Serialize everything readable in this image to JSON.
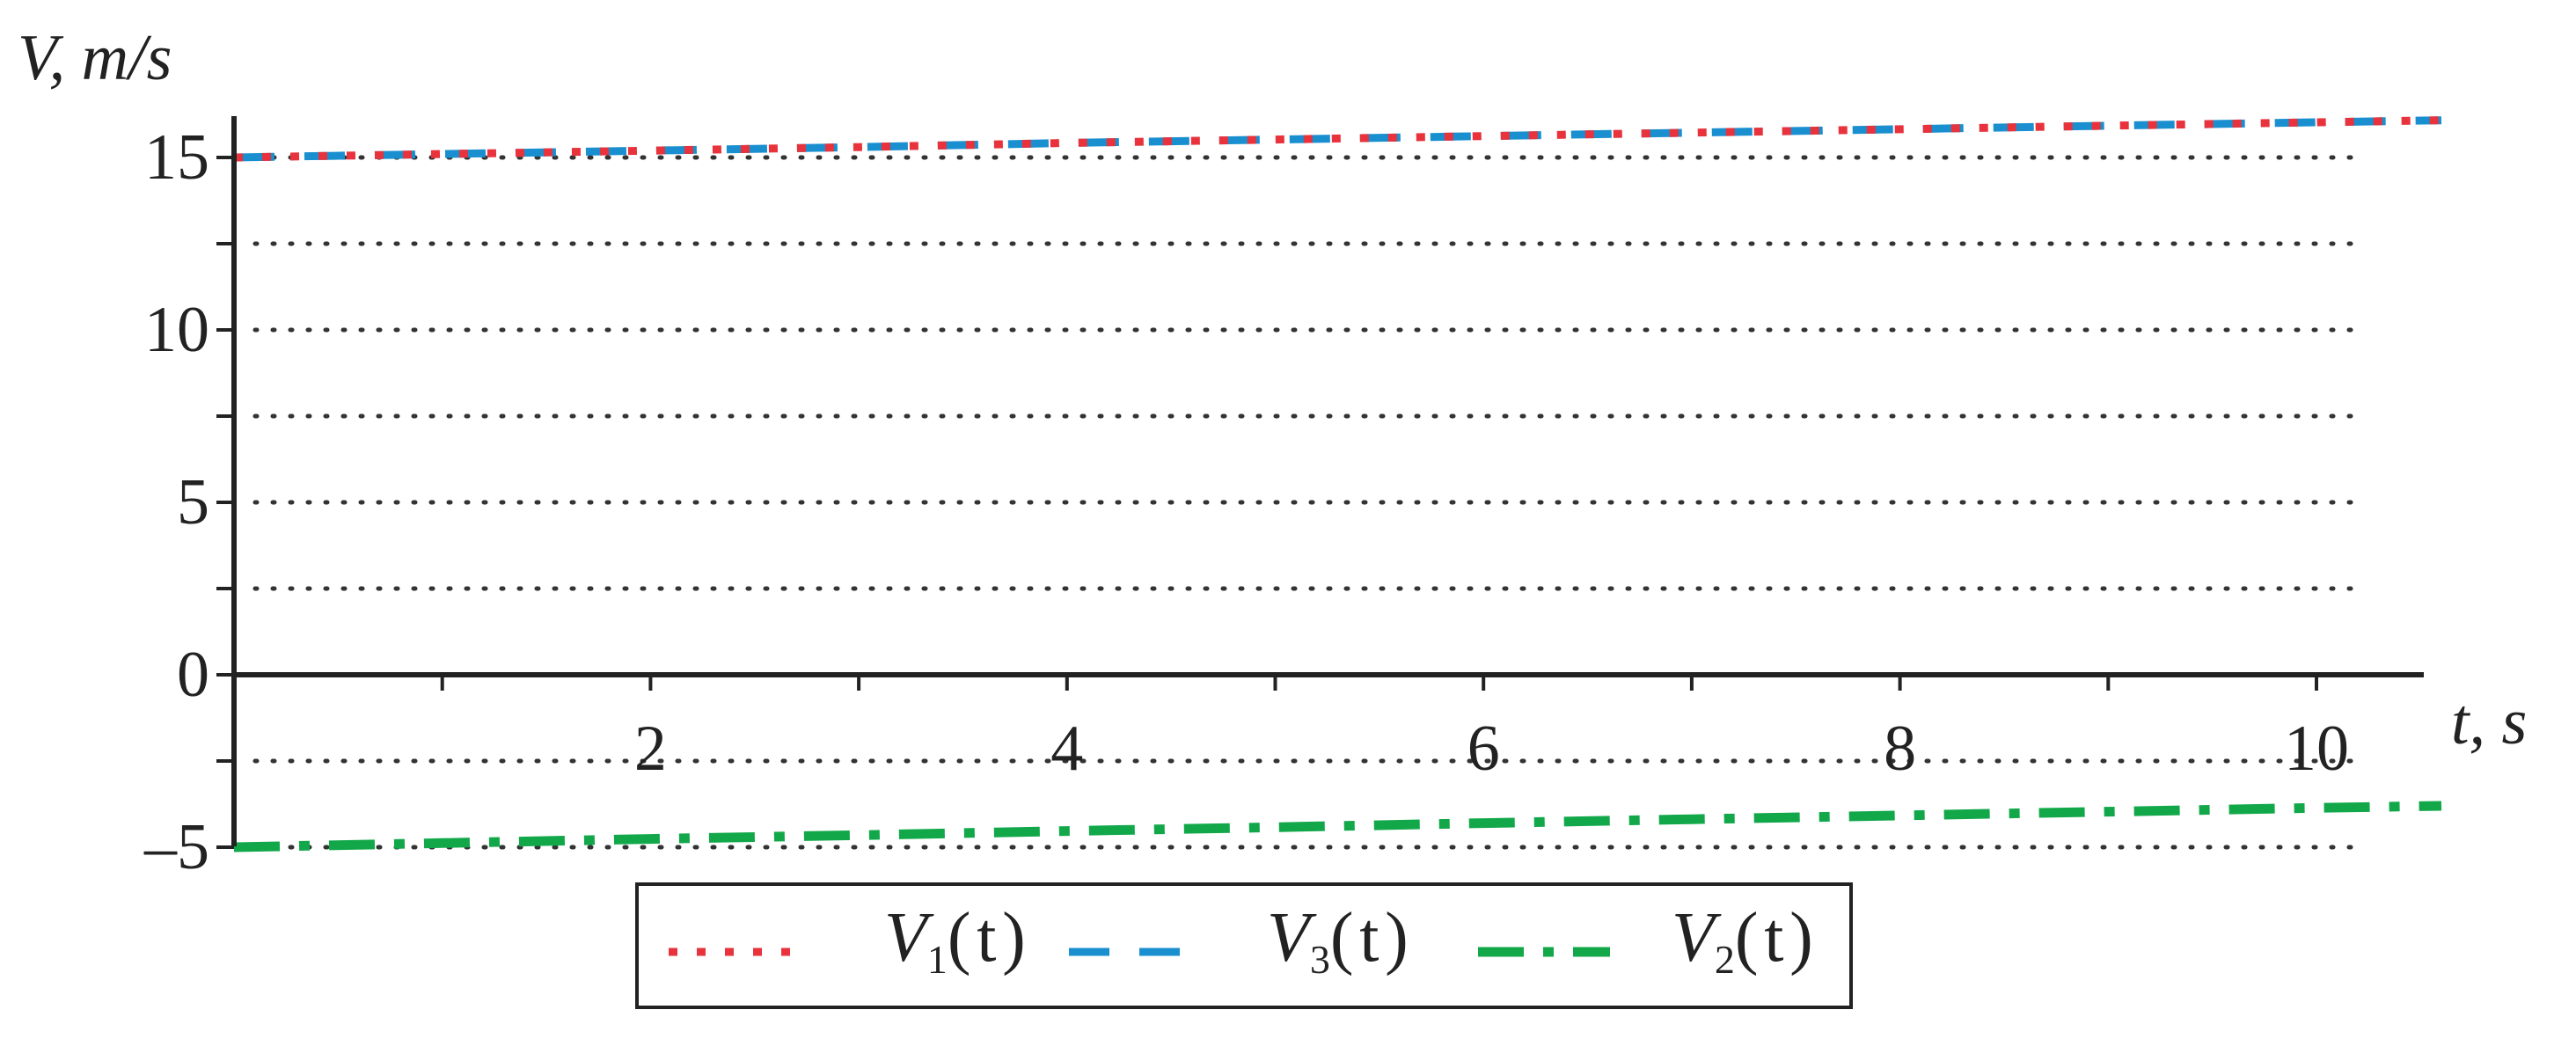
{
  "chart_data": {
    "type": "line",
    "xlabel": "t, s",
    "ylabel": "V, m/s",
    "xlim": [
      0,
      10.6
    ],
    "ylim": [
      -5,
      16
    ],
    "x_ticks": [
      2,
      4,
      6,
      8,
      10
    ],
    "x_minor_ticks": [
      1,
      2,
      3,
      4,
      5,
      6,
      7,
      8,
      9,
      10
    ],
    "y_ticks": [
      -5,
      0,
      5,
      10,
      15
    ],
    "grid": {
      "y_lines": [
        -5,
        -2.5,
        2.5,
        5,
        7.5,
        10,
        12.5,
        15
      ],
      "style": "dotted"
    },
    "legend_position": "bottom-center",
    "series": [
      {
        "name": "V1(t)",
        "label_main": "V",
        "label_sub": "1",
        "label_arg": "(t)",
        "color": "#e8323c",
        "style": "dotted",
        "x": [
          0,
          1,
          2,
          3,
          4,
          5,
          6,
          7,
          8,
          9,
          10,
          10.6
        ],
        "y": [
          15.0,
          15.1,
          15.2,
          15.3,
          15.42,
          15.52,
          15.62,
          15.72,
          15.82,
          15.92,
          16.02,
          16.08
        ]
      },
      {
        "name": "V3(t)",
        "label_main": "V",
        "label_sub": "3",
        "label_arg": "(t)",
        "color": "#1a8fd0",
        "style": "dashed",
        "x": [
          0,
          1,
          2,
          3,
          4,
          5,
          6,
          7,
          8,
          9,
          10,
          10.6
        ],
        "y": [
          15.0,
          15.1,
          15.2,
          15.3,
          15.42,
          15.52,
          15.62,
          15.72,
          15.82,
          15.92,
          16.02,
          16.08
        ]
      },
      {
        "name": "V2(t)",
        "label_main": "V",
        "label_sub": "2",
        "label_arg": "(t)",
        "color": "#12a84a",
        "style": "dashdot",
        "x": [
          0,
          1,
          2,
          3,
          4,
          5,
          6,
          7,
          8,
          9,
          10,
          10.6
        ],
        "y": [
          -5.0,
          -4.88,
          -4.76,
          -4.65,
          -4.53,
          -4.42,
          -4.3,
          -4.19,
          -4.08,
          -3.97,
          -3.86,
          -3.8
        ]
      }
    ]
  }
}
